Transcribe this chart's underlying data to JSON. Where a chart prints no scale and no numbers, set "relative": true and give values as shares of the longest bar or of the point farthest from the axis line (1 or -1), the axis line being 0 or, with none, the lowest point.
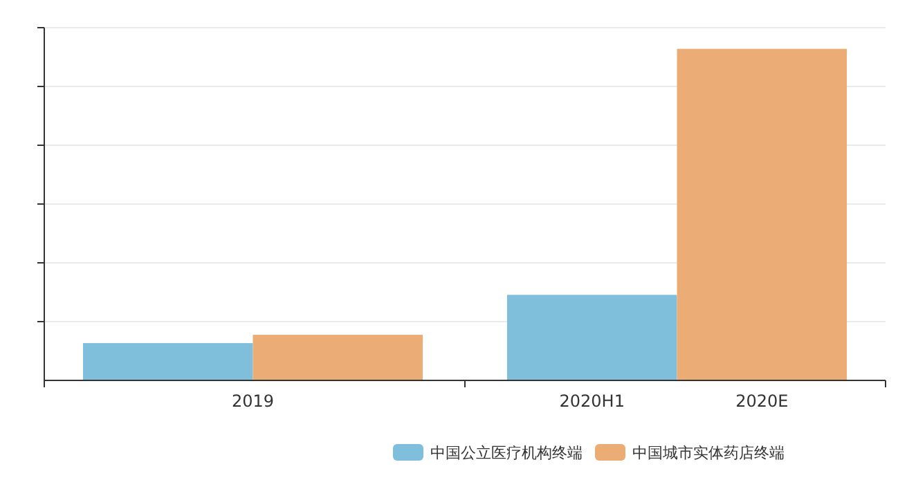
{
  "chart_data": {
    "type": "bar",
    "relative": true,
    "categories": [
      "2019",
      "2020H1",
      "2020E"
    ],
    "series": [
      {
        "name": "中国公立医疗机构终端",
        "color": "#7fbfdc",
        "values": [
          0.1125,
          0.258,
          null
        ]
      },
      {
        "name": "中国城市实体药店终端",
        "color": "#ebad75",
        "values": [
          0.1375,
          null,
          1
        ]
      }
    ],
    "grid": "y",
    "legend": "bottom"
  }
}
